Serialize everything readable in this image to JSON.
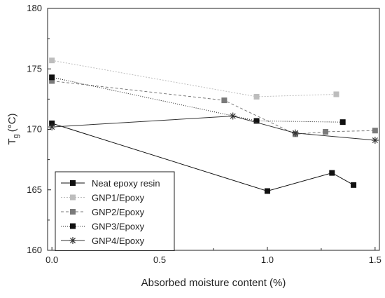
{
  "chart_data": {
    "type": "line",
    "xlabel": "Absorbed moisture content (%)",
    "ylabel": {
      "main": "T",
      "sub": "g",
      "unit": "(°C)"
    },
    "xlim": [
      -0.02,
      1.52
    ],
    "ylim": [
      160,
      180
    ],
    "xticks": [
      0.0,
      0.5,
      1.0,
      1.5
    ],
    "xtick_labels": [
      "0.0",
      "0.5",
      "1.0",
      "1.5"
    ],
    "yticks": [
      160,
      165,
      170,
      175,
      180
    ],
    "ytick_labels": [
      "160",
      "165",
      "170",
      "175",
      "180"
    ],
    "legend_position": "bottom-left",
    "series": [
      {
        "name": "Neat epoxy resin",
        "color": "#111111",
        "dash": "",
        "marker": "square",
        "points": [
          [
            0.0,
            170.5
          ],
          [
            1.0,
            164.9
          ],
          [
            1.3,
            166.4
          ],
          [
            1.4,
            165.4
          ]
        ]
      },
      {
        "name": "GNP1/Epoxy",
        "color": "#bdbdbd",
        "dash": "2,2",
        "marker": "square",
        "points": [
          [
            0.0,
            175.7
          ],
          [
            0.95,
            172.7
          ],
          [
            1.32,
            172.9
          ]
        ]
      },
      {
        "name": "GNP2/Epoxy",
        "color": "#7a7a7a",
        "dash": "4,3",
        "marker": "square",
        "points": [
          [
            0.0,
            174.0
          ],
          [
            0.8,
            172.4
          ],
          [
            1.13,
            169.6
          ],
          [
            1.27,
            169.8
          ],
          [
            1.5,
            169.9
          ]
        ]
      },
      {
        "name": "GNP3/Epoxy",
        "color": "#111111",
        "dash": "1,2",
        "marker": "square",
        "points": [
          [
            0.0,
            174.3
          ],
          [
            0.95,
            170.7
          ],
          [
            1.35,
            170.6
          ]
        ]
      },
      {
        "name": "GNP4/Epoxy",
        "color": "#333333",
        "dash": "",
        "marker": "asterisk",
        "points": [
          [
            0.0,
            170.2
          ],
          [
            0.84,
            171.1
          ],
          [
            1.13,
            169.7
          ],
          [
            1.5,
            169.1
          ]
        ]
      }
    ]
  }
}
